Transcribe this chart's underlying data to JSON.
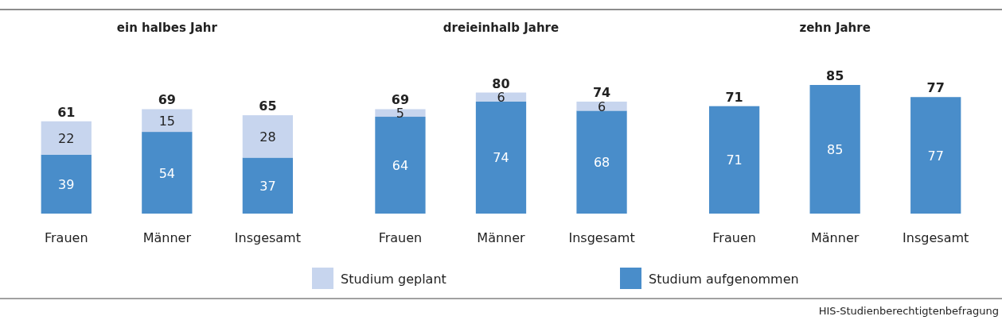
{
  "chart_data": [
    {
      "type": "bar",
      "title": "ein halbes Jahr",
      "categories": [
        "Frauen",
        "Männer",
        "Insgesamt"
      ],
      "stacked": true,
      "data_labels": true,
      "legend": "bottom",
      "totals": [
        "61",
        "69",
        "65"
      ],
      "series": [
        {
          "name": "Studium aufgenommen",
          "color": "#498dca",
          "values": [
            39,
            54,
            37
          ]
        },
        {
          "name": "Studium geplant",
          "color": "#c7d5ee",
          "values": [
            22,
            15,
            28
          ]
        }
      ]
    },
    {
      "type": "bar",
      "title": "dreieinhalb Jahre",
      "categories": [
        "Frauen",
        "Männer",
        "Insgesamt"
      ],
      "stacked": true,
      "data_labels": true,
      "totals": [
        "69",
        "80",
        "74"
      ],
      "series": [
        {
          "color": "#498dca",
          "values": [
            64,
            74,
            68
          ]
        },
        {
          "color": "#c7d5ee",
          "values": [
            5,
            6,
            6
          ]
        }
      ]
    },
    {
      "type": "bar",
      "title": "zehn Jahre",
      "categories": [
        "Frauen",
        "Männer",
        "Insgesamt"
      ],
      "stacked": true,
      "data_labels": true,
      "totals": [
        "71",
        "85",
        "77"
      ],
      "annotations": [
        "HIS-Studienberechtigtenbefragung"
      ],
      "series": [
        {
          "color": "#498dca",
          "values": [
            71,
            85,
            77
          ]
        }
      ]
    }
  ]
}
